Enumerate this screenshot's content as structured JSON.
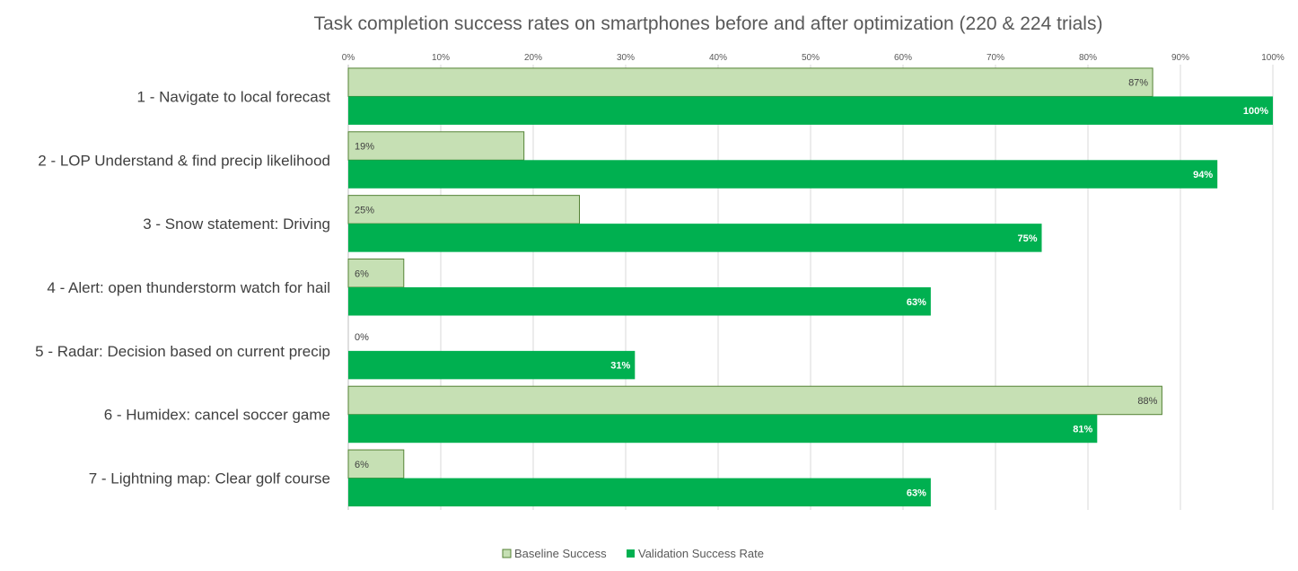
{
  "chart_data": {
    "type": "bar",
    "orientation": "horizontal",
    "title": "Task completion success rates on smartphones before and after optimization (220 & 224 trials)",
    "xlim": [
      0,
      100
    ],
    "x_ticks": [
      "0%",
      "10%",
      "20%",
      "30%",
      "40%",
      "50%",
      "60%",
      "70%",
      "80%",
      "90%",
      "100%"
    ],
    "grid": true,
    "legend_position": "bottom",
    "categories": [
      "1 - Navigate to local forecast",
      "2 - LOP Understand & find precip likelihood",
      "3 - Snow statement: Driving",
      "4 - Alert: open thunderstorm watch for hail",
      "5 - Radar: Decision based on current precip",
      "6 - Humidex: cancel soccer game",
      "7 - Lightning map: Clear golf course"
    ],
    "series": [
      {
        "name": "Baseline Success",
        "color": "#c6e0b4",
        "border": "#548235",
        "values": [
          87,
          19,
          25,
          6,
          0,
          88,
          6
        ],
        "labels": [
          "87%",
          "19%",
          "25%",
          "6%",
          "0%",
          "88%",
          "6%"
        ]
      },
      {
        "name": "Validation Success Rate",
        "color": "#00b050",
        "values": [
          100,
          94,
          75,
          63,
          31,
          81,
          63
        ],
        "labels": [
          "100%",
          "94%",
          "75%",
          "63%",
          "31%",
          "81%",
          "63%"
        ]
      }
    ]
  }
}
